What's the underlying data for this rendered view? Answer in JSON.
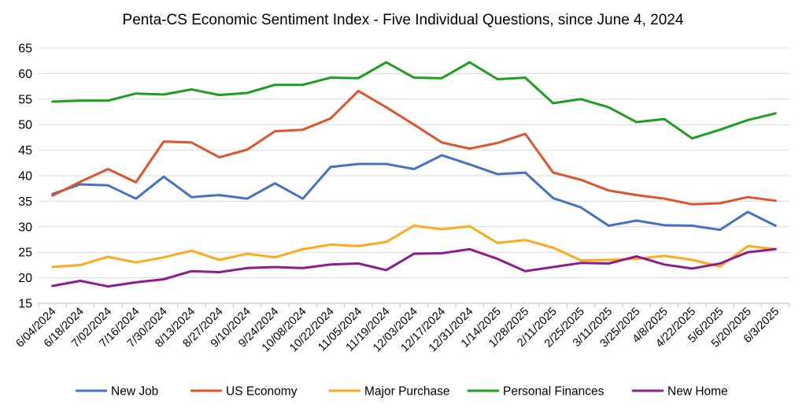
{
  "chart_data": {
    "type": "line",
    "title": "Penta-CS Economic Sentiment Index - Five Individual Questions, since June 4, 2024",
    "xlabel": "",
    "ylabel": "",
    "ylim": [
      15,
      65
    ],
    "yticks": [
      15,
      20,
      25,
      30,
      35,
      40,
      45,
      50,
      55,
      60,
      65
    ],
    "grid": true,
    "legend_position": "bottom",
    "categories": [
      "6/04/2024",
      "6/18/2024",
      "7/02/2024",
      "7/16/2024",
      "7/30/2024",
      "8/13/2024",
      "8/27/2024",
      "9/10/2024",
      "9/24/2024",
      "10/08/2024",
      "10/22/2024",
      "11/05/2024",
      "11/19/2024",
      "12/03/2024",
      "12/17/2024",
      "12/31/2024",
      "1/14/2025",
      "1/28/2025",
      "2/11/2025",
      "2/25/2025",
      "3/11/2025",
      "3/25/2025",
      "4/8/2025",
      "4/22/2025",
      "5/6/2025",
      "5/20/2025",
      "6/3/2025"
    ],
    "series": [
      {
        "name": "New Job",
        "color": "#4472C4",
        "values": [
          36.4,
          38.3,
          38.1,
          35.5,
          39.8,
          35.8,
          36.2,
          35.5,
          38.5,
          35.5,
          41.7,
          42.3,
          42.3,
          41.3,
          44.0,
          42.2,
          40.3,
          40.6,
          35.6,
          33.8,
          30.2,
          31.2,
          30.3,
          30.2,
          29.4,
          32.9,
          30.2
        ]
      },
      {
        "name": "US Economy",
        "color": "#E0542A",
        "values": [
          36.1,
          38.8,
          41.3,
          38.7,
          46.7,
          46.5,
          43.6,
          45.1,
          48.7,
          49.0,
          51.2,
          56.6,
          53.4,
          50.0,
          46.5,
          45.3,
          46.4,
          48.2,
          40.6,
          39.2,
          37.1,
          36.2,
          35.5,
          34.4,
          34.6,
          35.8,
          35.1
        ]
      },
      {
        "name": "Major Purchase",
        "color": "#FFAA1D",
        "values": [
          22.1,
          22.5,
          24.1,
          23.0,
          24.0,
          25.3,
          23.5,
          24.7,
          24.0,
          25.6,
          26.5,
          26.2,
          27.0,
          30.2,
          29.5,
          30.1,
          26.8,
          27.4,
          25.9,
          23.4,
          23.5,
          23.7,
          24.3,
          23.5,
          22.2,
          26.2,
          25.6
        ]
      },
      {
        "name": "Personal Finances",
        "color": "#1E9E1E",
        "values": [
          54.5,
          54.7,
          54.7,
          56.1,
          55.9,
          56.9,
          55.8,
          56.2,
          57.8,
          57.8,
          59.2,
          59.1,
          62.2,
          59.2,
          59.1,
          62.2,
          58.9,
          59.2,
          54.2,
          55.0,
          53.4,
          50.5,
          51.1,
          47.3,
          49.0,
          50.9,
          52.2
        ]
      },
      {
        "name": "New Home",
        "color": "#8E1C8E",
        "values": [
          18.4,
          19.4,
          18.3,
          19.1,
          19.7,
          21.3,
          21.1,
          21.9,
          22.1,
          21.9,
          22.6,
          22.8,
          21.5,
          24.7,
          24.8,
          25.6,
          23.7,
          21.3,
          22.1,
          22.9,
          22.8,
          24.2,
          22.6,
          21.8,
          22.8,
          25.0,
          25.6
        ]
      }
    ]
  }
}
